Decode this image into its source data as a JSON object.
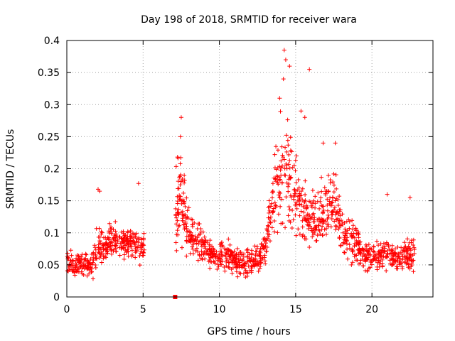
{
  "chart_data": {
    "type": "scatter",
    "title": "Day 198 of 2018, SRMTID for receiver wara",
    "xlabel": "GPS time / hours",
    "ylabel": "SRMTID / TECUs",
    "xlim": [
      0,
      24
    ],
    "ylim": [
      0,
      0.4
    ],
    "x_ticks": [
      0,
      5,
      10,
      15,
      20
    ],
    "x_tick_labels": [
      "0",
      "5",
      "10",
      "15",
      "20"
    ],
    "y_ticks": [
      0,
      0.05,
      0.1,
      0.15,
      0.2,
      0.25,
      0.3,
      0.35,
      0.4
    ],
    "y_tick_labels": [
      "0",
      "0.05",
      "0.1",
      "0.15",
      "0.2",
      "0.25",
      "0.3",
      "0.35",
      "0.4"
    ],
    "grid": true,
    "marker": "plus",
    "marker_color": "#ff0000",
    "square_marker": {
      "x": 7.1,
      "y": 0.0
    },
    "envelope": {
      "x": [
        0.0,
        0.5,
        1.0,
        1.5,
        2.0,
        2.5,
        3.0,
        3.5,
        4.0,
        4.5,
        5.0,
        7.2,
        7.5,
        8.0,
        8.5,
        9.0,
        9.5,
        10.0,
        10.5,
        11.0,
        11.5,
        12.0,
        12.5,
        13.0,
        13.5,
        14.0,
        14.5,
        15.0,
        15.5,
        16.0,
        16.5,
        17.0,
        17.5,
        18.0,
        18.5,
        19.0,
        19.5,
        20.0,
        20.5,
        21.0,
        21.5,
        22.0,
        22.5,
        22.8
      ],
      "center": [
        0.055,
        0.05,
        0.05,
        0.045,
        0.07,
        0.08,
        0.09,
        0.085,
        0.085,
        0.08,
        0.08,
        0.13,
        0.15,
        0.1,
        0.09,
        0.08,
        0.065,
        0.06,
        0.065,
        0.06,
        0.05,
        0.055,
        0.06,
        0.08,
        0.15,
        0.19,
        0.19,
        0.16,
        0.13,
        0.12,
        0.12,
        0.14,
        0.135,
        0.11,
        0.09,
        0.08,
        0.06,
        0.06,
        0.065,
        0.065,
        0.06,
        0.06,
        0.065,
        0.075
      ],
      "spread": [
        0.03,
        0.025,
        0.025,
        0.025,
        0.05,
        0.04,
        0.035,
        0.035,
        0.035,
        0.035,
        0.04,
        0.11,
        0.1,
        0.05,
        0.04,
        0.035,
        0.03,
        0.03,
        0.04,
        0.035,
        0.03,
        0.03,
        0.03,
        0.04,
        0.08,
        0.12,
        0.12,
        0.09,
        0.07,
        0.06,
        0.06,
        0.07,
        0.07,
        0.06,
        0.05,
        0.04,
        0.03,
        0.03,
        0.03,
        0.03,
        0.025,
        0.03,
        0.04,
        0.035
      ],
      "n_points": 1650,
      "gap_hours": [
        5.1,
        7.1
      ],
      "seed": 198
    },
    "series": [
      {
        "name": "peak_samples",
        "x": [
          14.25,
          14.35,
          14.6,
          14.2,
          15.9,
          15.35,
          15.6,
          13.95,
          16.8,
          17.6,
          7.5,
          7.45,
          21.0,
          22.5,
          2.05,
          2.15,
          4.7
        ],
        "y": [
          0.385,
          0.37,
          0.36,
          0.34,
          0.355,
          0.29,
          0.28,
          0.31,
          0.24,
          0.24,
          0.28,
          0.25,
          0.16,
          0.155,
          0.168,
          0.165,
          0.177
        ]
      }
    ]
  }
}
